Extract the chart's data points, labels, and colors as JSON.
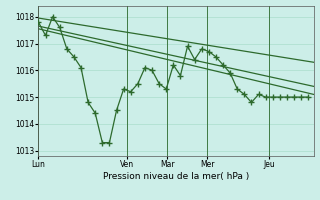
{
  "xlabel": "Pression niveau de la mer( hPa )",
  "background_color": "#cceee8",
  "grid_color": "#aaddcc",
  "line_color": "#2d6a2d",
  "vline_color": "#2d6a2d",
  "ylim": [
    1012.8,
    1018.4
  ],
  "yticks": [
    1013,
    1014,
    1015,
    1016,
    1017,
    1018
  ],
  "xlim": [
    0,
    31
  ],
  "day_positions": [
    0,
    10,
    14.5,
    19,
    26,
    31
  ],
  "day_labels": [
    "Lun",
    "Ven",
    "Mar",
    "Mer",
    "Jeu",
    ""
  ],
  "series1_x": [
    0,
    0.8,
    1.6,
    2.4,
    3.2,
    4.0,
    4.8,
    5.6,
    6.4,
    7.2,
    8.0,
    8.8,
    9.6,
    10.4,
    11.2,
    12.0,
    12.8,
    13.6,
    14.4,
    15.2,
    16.0,
    16.8,
    17.6,
    18.4,
    19.2,
    20.0,
    20.8,
    21.6,
    22.4,
    23.2,
    24.0,
    24.8,
    25.6,
    26.4,
    27.2,
    28.0,
    28.8,
    29.6,
    30.4
  ],
  "series1_y": [
    1017.8,
    1017.3,
    1018.0,
    1017.6,
    1016.8,
    1016.5,
    1016.1,
    1014.8,
    1014.4,
    1013.3,
    1013.3,
    1014.5,
    1015.3,
    1015.2,
    1015.5,
    1016.1,
    1016.0,
    1015.5,
    1015.3,
    1016.2,
    1015.8,
    1016.9,
    1016.4,
    1016.8,
    1016.7,
    1016.5,
    1016.2,
    1015.9,
    1015.3,
    1015.1,
    1014.8,
    1015.1,
    1015.0,
    1015.0,
    1015.0,
    1015.0,
    1015.0,
    1015.0,
    1015.0
  ],
  "trend1_x": [
    0,
    31
  ],
  "trend1_y": [
    1017.95,
    1016.3
  ],
  "trend2_x": [
    0,
    31
  ],
  "trend2_y": [
    1017.65,
    1015.4
  ],
  "trend3_x": [
    0,
    31
  ],
  "trend3_y": [
    1017.55,
    1015.1
  ]
}
